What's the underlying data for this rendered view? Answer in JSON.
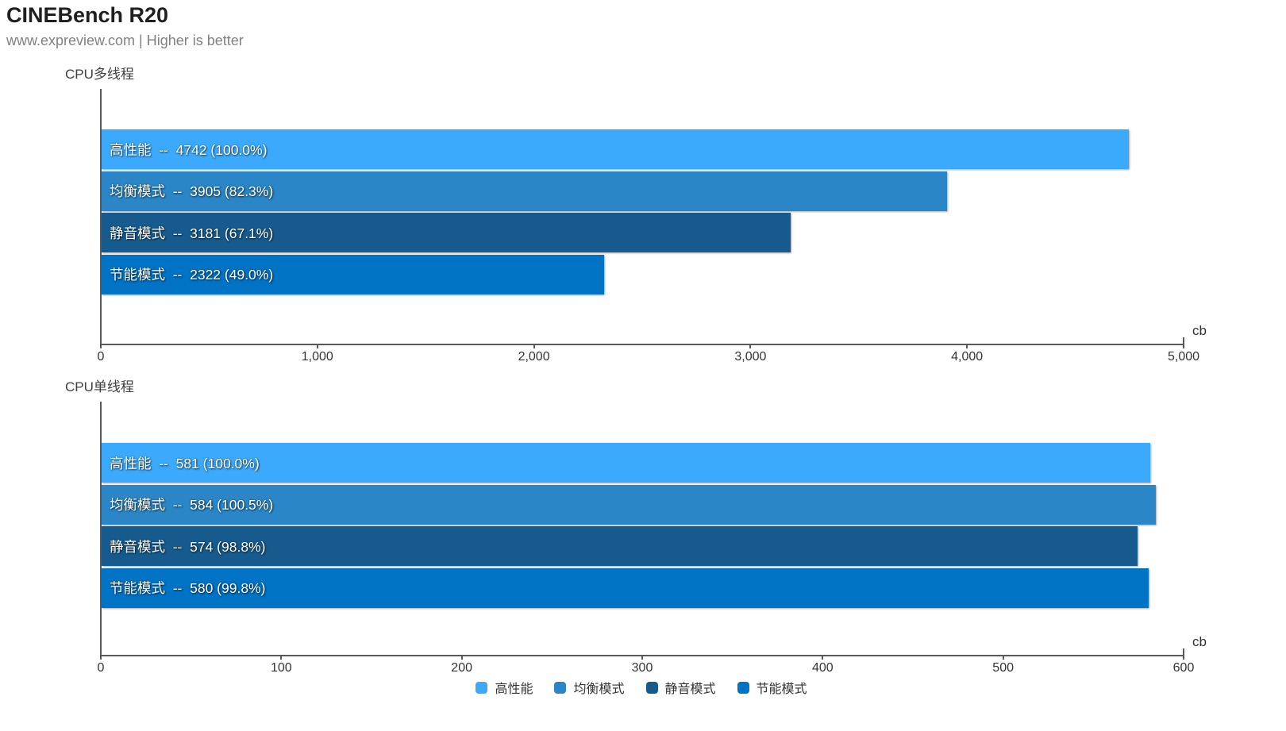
{
  "header": {
    "title": "CINEBench R20",
    "subtitle": "www.expreview.com | Higher is better"
  },
  "accent_colors": {
    "bar_performance": "#3BAAFC",
    "bar_balanced": "#2A86C6",
    "bar_silent": "#175B8E",
    "bar_powersave": "#0173C5",
    "axis": "#595959",
    "bar_text": "#FFFFFF"
  },
  "label_separator": "--",
  "legend": {
    "items": [
      {
        "label": "高性能",
        "color": "#3BAAFC"
      },
      {
        "label": "均衡模式",
        "color": "#2A86C6"
      },
      {
        "label": "静音模式",
        "color": "#175B8E"
      },
      {
        "label": "节能模式",
        "color": "#0173C5"
      }
    ]
  },
  "chart_data": [
    {
      "type": "bar",
      "orientation": "horizontal",
      "title": "CPU多线程",
      "unit": "cb",
      "categories": [
        "高性能",
        "均衡模式",
        "静音模式",
        "节能模式"
      ],
      "values": [
        4742,
        3905,
        3181,
        2322
      ],
      "percent_labels": [
        "100.0%",
        "82.3%",
        "67.1%",
        "49.0%"
      ],
      "bar_colors": [
        "#3BAAFC",
        "#2A86C6",
        "#175B8E",
        "#0173C5"
      ],
      "xlim": [
        0,
        5000
      ],
      "xtick_values": [
        0,
        1000,
        2000,
        3000,
        4000,
        5000
      ],
      "xtick_labels": [
        "0",
        "1,000",
        "2,000",
        "3,000",
        "4,000",
        "5,000"
      ],
      "grid": false,
      "value_labels_inside_bars": true
    },
    {
      "type": "bar",
      "orientation": "horizontal",
      "title": "CPU单线程",
      "unit": "cb",
      "categories": [
        "高性能",
        "均衡模式",
        "静音模式",
        "节能模式"
      ],
      "values": [
        581,
        584,
        574,
        580
      ],
      "percent_labels": [
        "100.0%",
        "100.5%",
        "98.8%",
        "99.8%"
      ],
      "bar_colors": [
        "#3BAAFC",
        "#2A86C6",
        "#175B8E",
        "#0173C5"
      ],
      "xlim": [
        0,
        600
      ],
      "xtick_values": [
        0,
        100,
        200,
        300,
        400,
        500,
        600
      ],
      "xtick_labels": [
        "0",
        "100",
        "200",
        "300",
        "400",
        "500",
        "600"
      ],
      "grid": false,
      "value_labels_inside_bars": true
    }
  ]
}
